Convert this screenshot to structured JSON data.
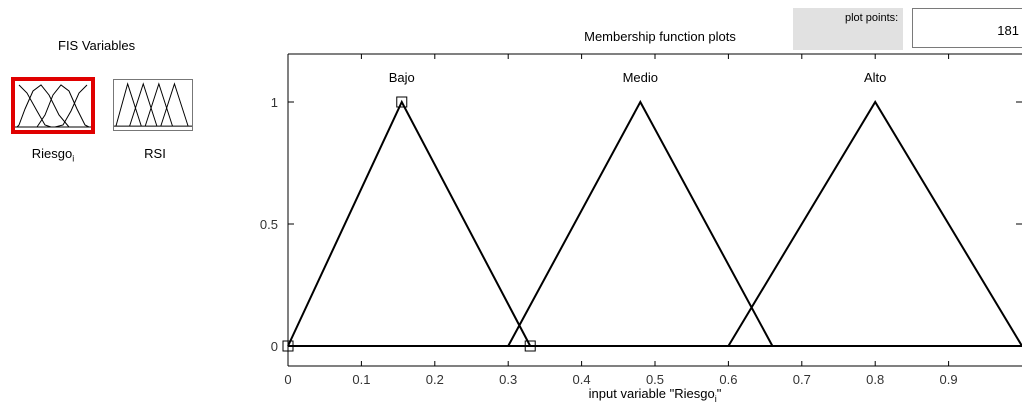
{
  "sidebar": {
    "title": "FIS Variables",
    "variables": [
      {
        "label": "Riesgo",
        "subscript": "i",
        "selected": true,
        "kind": "input"
      },
      {
        "label": "RSI",
        "selected": false,
        "kind": "output"
      }
    ],
    "selected_color": "#e00000"
  },
  "plot": {
    "title": "Membership function plots",
    "points_label": "plot points:",
    "points_value": "181"
  },
  "chart_data": {
    "type": "line",
    "title": "Membership function plots",
    "xlabel": "input variable \"Riesgo",
    "xlabel_subscript": "i",
    "xlabel_suffix": "\"",
    "ylabel": "",
    "xlim": [
      0,
      1
    ],
    "ylim": [
      0,
      1
    ],
    "xticks": [
      "0",
      "0.1",
      "0.2",
      "0.3",
      "0.4",
      "0.5",
      "0.6",
      "0.7",
      "0.8",
      "0.9"
    ],
    "yticks": [
      "0",
      "0.5",
      "1"
    ],
    "grid": false,
    "series": [
      {
        "name": "Bajo",
        "x": [
          0,
          0.155,
          0.33
        ],
        "y": [
          0,
          1,
          0
        ],
        "selected": true
      },
      {
        "name": "Medio",
        "x": [
          0.3,
          0.48,
          0.66
        ],
        "y": [
          0,
          1,
          0
        ],
        "selected": false
      },
      {
        "name": "Alto",
        "x": [
          0.6,
          0.8,
          1.0
        ],
        "y": [
          0,
          1,
          0
        ],
        "selected": false
      }
    ],
    "line_color": "#000000"
  }
}
